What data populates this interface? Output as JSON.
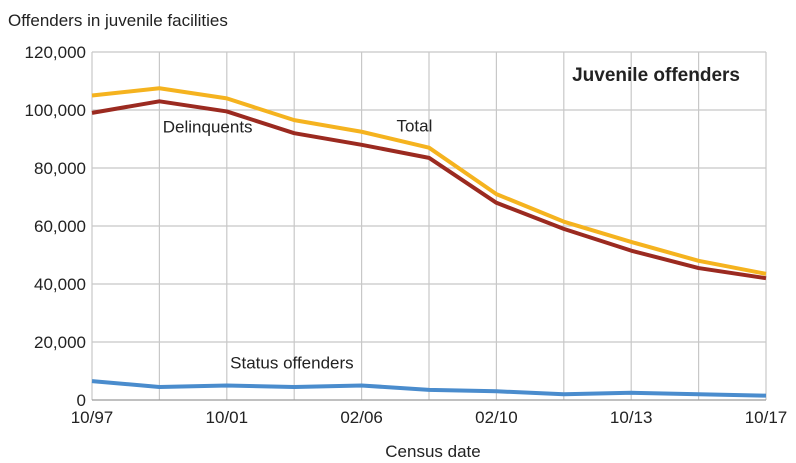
{
  "chart_data": {
    "type": "line",
    "title": "Juvenile offenders",
    "ylabel": "Offenders in juvenile facilities",
    "xlabel": "Census date",
    "ylim": [
      0,
      120000
    ],
    "yticks": [
      "0",
      "20,000",
      "40,000",
      "60,000",
      "80,000",
      "100,000",
      "120,000"
    ],
    "ytick_values": [
      0,
      20000,
      40000,
      60000,
      80000,
      100000,
      120000
    ],
    "x_tick_labels": [
      "10/97",
      "10/01",
      "02/06",
      "02/10",
      "10/13",
      "10/17"
    ],
    "x_tick_positions": [
      0,
      2,
      4,
      6,
      8,
      10
    ],
    "x": [
      0,
      1,
      2,
      3,
      4,
      5,
      6,
      7,
      8,
      9,
      10
    ],
    "grid": true,
    "series": [
      {
        "name": "Total",
        "color": "#f5b31f",
        "values": [
          105000,
          107500,
          104000,
          96500,
          92500,
          87000,
          71000,
          61500,
          54500,
          48000,
          43500
        ]
      },
      {
        "name": "Delinquents",
        "color": "#9b2a20",
        "values": [
          99000,
          103000,
          99500,
          92000,
          88000,
          83500,
          68000,
          59000,
          51500,
          45500,
          42000
        ]
      },
      {
        "name": "Status offenders",
        "color": "#4a8ccd",
        "values": [
          6500,
          4500,
          5000,
          4500,
          5000,
          3500,
          3000,
          2000,
          2500,
          2000,
          1500
        ]
      }
    ]
  }
}
